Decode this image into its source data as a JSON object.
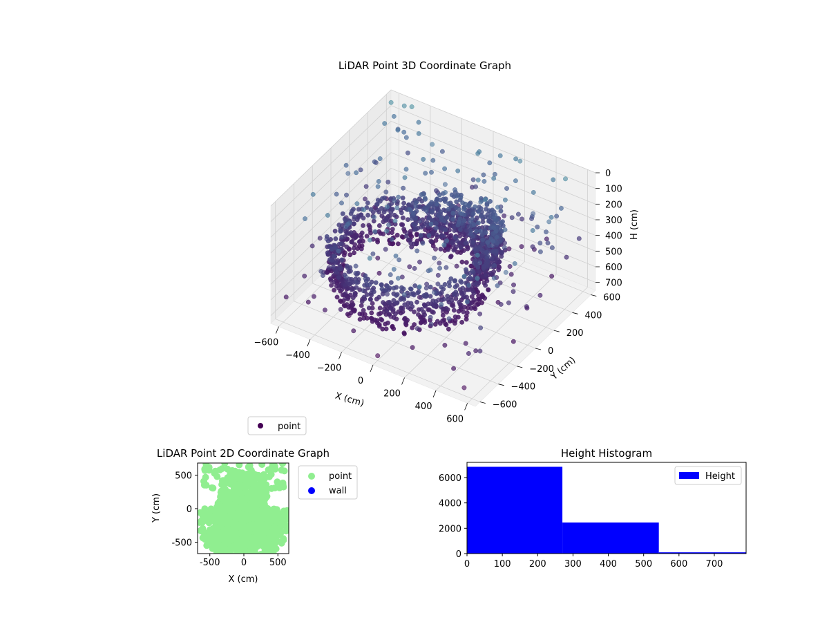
{
  "figure": {
    "background": "#ffffff"
  },
  "chart_data": [
    {
      "type": "scatter",
      "subtype": "3d",
      "title": "LiDAR Point 3D Coordinate Graph",
      "xlabel": "X (cm)",
      "ylabel": "Y (cm)",
      "zlabel": "H (cm)",
      "xlim": [
        -650,
        650
      ],
      "ylim": [
        -650,
        650
      ],
      "zlim": [
        0,
        750
      ],
      "zaxis_inverted": true,
      "xticks": [
        "−600",
        "−400",
        "−200",
        "0",
        "200",
        "400",
        "600"
      ],
      "yticks": [
        "−600",
        "−400",
        "−200",
        "0",
        "200",
        "400",
        "600"
      ],
      "zticks": [
        "0",
        "100",
        "200",
        "300",
        "400",
        "500",
        "600",
        "700"
      ],
      "grid": true,
      "colormap": "viridis",
      "legend": {
        "position": "bottom-left",
        "entries": [
          {
            "label": "point",
            "color": "#440154"
          }
        ]
      },
      "series": [
        {
          "name": "point",
          "description_clusters": [
            {
              "shape": "ring",
              "center": [
                -100,
                -100
              ],
              "radius": 430,
              "h_range": [
                330,
                600
              ],
              "count": 900
            },
            {
              "shape": "arc",
              "center": [
                60,
                120
              ],
              "radius": 260,
              "h_range": [
                230,
                500
              ],
              "count": 500
            }
          ],
          "outliers": [
            {
              "x": -620,
              "y": 600,
              "h": 40
            },
            {
              "x": -560,
              "y": 640,
              "h": 60
            },
            {
              "x": -500,
              "y": 620,
              "h": 30
            },
            {
              "x": -300,
              "y": 500,
              "h": 120
            },
            {
              "x": 200,
              "y": 600,
              "h": 80
            },
            {
              "x": 500,
              "y": 580,
              "h": 60
            },
            {
              "x": 560,
              "y": 300,
              "h": 150
            },
            {
              "x": 580,
              "y": -200,
              "h": 180
            },
            {
              "x": 300,
              "y": -500,
              "h": 250
            },
            {
              "x": -200,
              "y": -600,
              "h": 300
            },
            {
              "x": -500,
              "y": -300,
              "h": 350
            },
            {
              "x": -600,
              "y": 100,
              "h": 200
            },
            {
              "x": 400,
              "y": 400,
              "h": 220
            },
            {
              "x": -100,
              "y": 300,
              "h": 180
            },
            {
              "x": 100,
              "y": -300,
              "h": 600
            },
            {
              "x": -300,
              "y": -400,
              "h": 700
            },
            {
              "x": 0,
              "y": -600,
              "h": 720
            },
            {
              "x": 550,
              "y": -600,
              "h": 700
            }
          ]
        }
      ]
    },
    {
      "type": "scatter",
      "title": "LiDAR Point 2D Coordinate Graph",
      "xlabel": "X (cm)",
      "ylabel": "Y (cm)",
      "xlim": [
        -680,
        660
      ],
      "ylim": [
        -670,
        680
      ],
      "xticks": [
        -500,
        0,
        500
      ],
      "yticks": [
        -500,
        0,
        500
      ],
      "legend": {
        "position": "outside-right",
        "entries": [
          {
            "label": "point",
            "color": "#90ee90"
          },
          {
            "label": "wall",
            "color": "#0000ff"
          }
        ]
      },
      "series": [
        {
          "name": "point",
          "color": "#90ee90",
          "regions": [
            {
              "shape": "fan",
              "x_range": [
                -680,
                660
              ],
              "y_range": [
                -670,
                680
              ]
            }
          ]
        },
        {
          "name": "wall",
          "color": "#0000ff",
          "points": []
        }
      ]
    },
    {
      "type": "bar",
      "subtype": "histogram",
      "title": "Height Histogram",
      "xlabel": "",
      "ylabel": "",
      "bins": [
        {
          "from": 0,
          "to": 270,
          "count": 6850
        },
        {
          "from": 270,
          "to": 543,
          "count": 2450
        },
        {
          "from": 543,
          "to": 790,
          "count": 100
        }
      ],
      "xlim": [
        0,
        790
      ],
      "ylim": [
        0,
        7200
      ],
      "xticks": [
        0,
        100,
        200,
        300,
        400,
        500,
        600,
        700
      ],
      "yticks": [
        0,
        2000,
        4000,
        6000
      ],
      "color": "#0000ff",
      "legend": {
        "position": "top-right",
        "entries": [
          {
            "label": "Height",
            "color": "#0000ff"
          }
        ]
      }
    }
  ]
}
